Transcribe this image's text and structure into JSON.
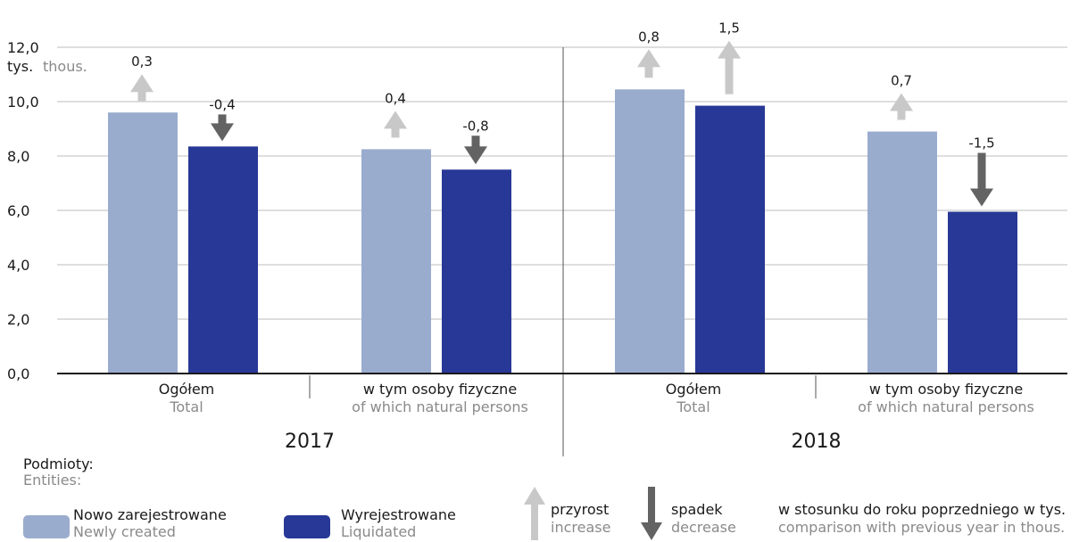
{
  "chart_data": {
    "type": "bar",
    "y_unit": {
      "pl": "tys.",
      "en": "thous."
    },
    "ylim": [
      0,
      12
    ],
    "yticks": [
      "0,0",
      "2,0",
      "4,0",
      "6,0",
      "8,0",
      "10,0",
      "12,0"
    ],
    "grid": true,
    "groups": [
      {
        "year": "2017",
        "categories": [
          {
            "pl": "Ogółem",
            "en": "Total",
            "newly_created": 9.6,
            "liquidated": 8.35,
            "change_new": {
              "value": 0.3,
              "label": "0,3"
            },
            "change_liq": {
              "value": -0.4,
              "label": "-0,4"
            }
          },
          {
            "pl": "w tym osoby fizyczne",
            "en": "of which natural persons",
            "newly_created": 8.25,
            "liquidated": 7.5,
            "change_new": {
              "value": 0.4,
              "label": "0,4"
            },
            "change_liq": {
              "value": -0.8,
              "label": "-0,8"
            }
          }
        ]
      },
      {
        "year": "2018",
        "categories": [
          {
            "pl": "Ogółem",
            "en": "Total",
            "newly_created": 10.45,
            "liquidated": 9.85,
            "change_new": {
              "value": 0.8,
              "label": "0,8"
            },
            "change_liq": {
              "value": 1.5,
              "label": "1,5"
            }
          },
          {
            "pl": "w tym osoby fizyczne",
            "en": "of which natural persons",
            "newly_created": 8.9,
            "liquidated": 5.95,
            "change_new": {
              "value": 0.7,
              "label": "0,7"
            },
            "change_liq": {
              "value": -1.5,
              "label": "-1,5"
            }
          }
        ]
      }
    ],
    "series": [
      {
        "name": "Nowo zarejestrowane",
        "name_en": "Newly created",
        "color": "#9aacce"
      },
      {
        "name": "Wyrejestrowane",
        "name_en": "Liquidated",
        "color": "#283896"
      }
    ],
    "arrow_colors": {
      "increase": "#c8c8c8",
      "decrease": "#636363"
    }
  },
  "legend": {
    "title": "Podmioty:",
    "title_en": "Entities:",
    "increase": "przyrost",
    "increase_en": "increase",
    "decrease": "spadek",
    "decrease_en": "decrease",
    "note": "w stosunku do roku poprzedniego w tys.",
    "note_en": "comparison with previous year in thous."
  }
}
